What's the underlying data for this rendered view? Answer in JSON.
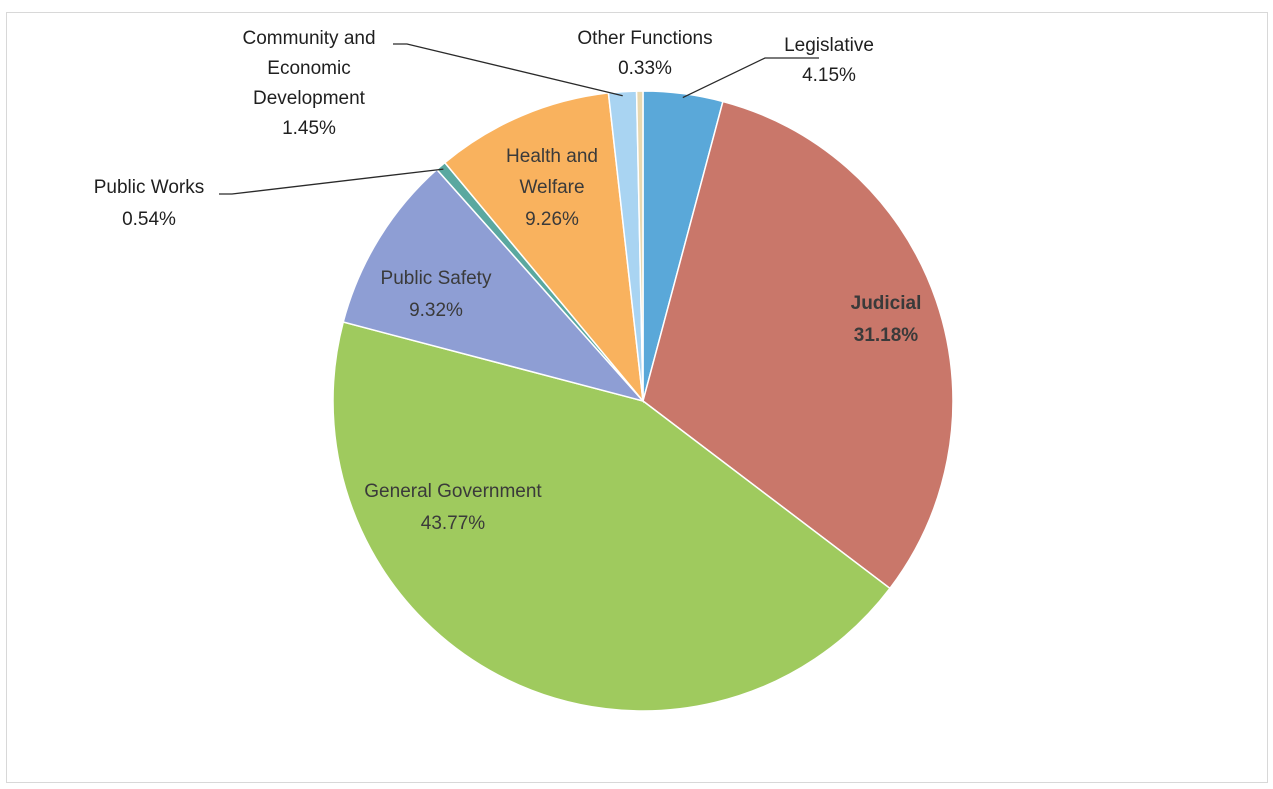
{
  "chart_data": {
    "type": "pie",
    "title": "",
    "slices": [
      {
        "label": "Legislative",
        "value": 4.15,
        "value_text": "4.15%",
        "color": "#5aa8d9",
        "label_inside": false
      },
      {
        "label": "Judicial",
        "value": 31.18,
        "value_text": "31.18%",
        "color": "#c9776a",
        "label_inside": true
      },
      {
        "label": "General Government",
        "value": 43.77,
        "value_text": "43.77%",
        "color": "#9fca5e",
        "label_inside": true
      },
      {
        "label": "Public Safety",
        "value": 9.32,
        "value_text": "9.32%",
        "color": "#8e9ed4",
        "label_inside": true
      },
      {
        "label": "Public Works",
        "value": 0.54,
        "value_text": "0.54%",
        "color": "#5aa8a0",
        "label_inside": false
      },
      {
        "label": "Health and Welfare",
        "value": 9.26,
        "value_text": "9.26%",
        "color": "#f9b25e",
        "label_inside": true
      },
      {
        "label": "Community and Economic Development",
        "value": 1.45,
        "value_text": "1.45%",
        "color": "#a9d4f2",
        "label_inside": false
      },
      {
        "label": "Other Functions",
        "value": 0.33,
        "value_text": "0.33%",
        "color": "#e8d8b0",
        "label_inside": false
      }
    ]
  }
}
